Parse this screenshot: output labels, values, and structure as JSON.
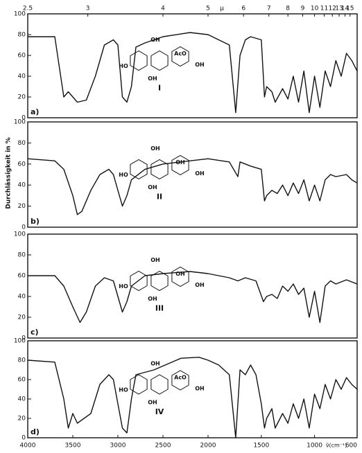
{
  "chart_data": [
    {
      "type": "line",
      "panel_label": "a)",
      "compound": "I",
      "x2label": "µ",
      "x2ticks": [
        2.5,
        3,
        4,
        5,
        6,
        7,
        8,
        9,
        10,
        11,
        12,
        13,
        14,
        15
      ],
      "structure_labels": [
        "HO",
        "OH",
        "AcO",
        "OH",
        "OH"
      ],
      "xlim": [
        4000,
        600
      ],
      "x_scale_change_at": 2000,
      "ylim": [
        0,
        100
      ],
      "yticks": [
        0,
        20,
        40,
        60,
        80,
        100
      ],
      "x": [
        4000,
        3700,
        3600,
        3550,
        3450,
        3350,
        3250,
        3150,
        3050,
        3000,
        2950,
        2900,
        2850,
        2800,
        2700,
        2500,
        2200,
        2000,
        1900,
        1800,
        1740,
        1700,
        1650,
        1600,
        1500,
        1470,
        1450,
        1400,
        1370,
        1300,
        1250,
        1200,
        1150,
        1100,
        1050,
        1000,
        950,
        900,
        850,
        800,
        750,
        700,
        650,
        600
      ],
      "series": [
        {
          "color": "#111111",
          "values": [
            78,
            78,
            20,
            25,
            15,
            17,
            40,
            70,
            75,
            70,
            20,
            15,
            30,
            68,
            72,
            78,
            82,
            80,
            75,
            70,
            5,
            60,
            75,
            78,
            75,
            20,
            30,
            25,
            15,
            28,
            18,
            40,
            15,
            45,
            5,
            40,
            10,
            45,
            30,
            55,
            40,
            62,
            55,
            45
          ]
        }
      ]
    },
    {
      "type": "line",
      "panel_label": "b)",
      "compound": "II",
      "ylabel": "Durchlässigkeit in %",
      "structure_labels": [
        "HO",
        "OH",
        "OH",
        "OH",
        "OH"
      ],
      "xlim": [
        4000,
        600
      ],
      "x_scale_change_at": 2000,
      "ylim": [
        0,
        100
      ],
      "yticks": [
        0,
        20,
        40,
        60,
        80,
        100
      ],
      "x": [
        4000,
        3700,
        3600,
        3500,
        3450,
        3400,
        3300,
        3200,
        3100,
        3050,
        2950,
        2900,
        2850,
        2700,
        2500,
        2200,
        2000,
        1800,
        1720,
        1700,
        1600,
        1500,
        1470,
        1450,
        1400,
        1350,
        1300,
        1250,
        1200,
        1150,
        1100,
        1050,
        1000,
        950,
        900,
        850,
        800,
        700,
        650,
        600
      ],
      "series": [
        {
          "color": "#111111",
          "values": [
            65,
            63,
            55,
            30,
            12,
            15,
            35,
            50,
            55,
            50,
            20,
            30,
            45,
            55,
            60,
            63,
            65,
            62,
            48,
            62,
            58,
            55,
            25,
            30,
            35,
            32,
            40,
            30,
            42,
            32,
            45,
            25,
            40,
            25,
            45,
            50,
            48,
            50,
            45,
            42
          ]
        }
      ]
    },
    {
      "type": "line",
      "panel_label": "c)",
      "compound": "III",
      "structure_labels": [
        "HO",
        "OH",
        "OH",
        "OH",
        "OH"
      ],
      "xlim": [
        4000,
        600
      ],
      "x_scale_change_at": 2000,
      "ylim": [
        0,
        100
      ],
      "yticks": [
        0,
        20,
        40,
        60,
        80,
        100
      ],
      "x": [
        4000,
        3700,
        3600,
        3500,
        3420,
        3350,
        3250,
        3150,
        3050,
        2950,
        2900,
        2850,
        2700,
        2500,
        2200,
        2000,
        1800,
        1720,
        1650,
        1550,
        1480,
        1450,
        1400,
        1350,
        1300,
        1250,
        1200,
        1150,
        1100,
        1050,
        1000,
        950,
        900,
        850,
        800,
        700,
        650,
        600
      ],
      "series": [
        {
          "color": "#111111",
          "values": [
            60,
            60,
            50,
            30,
            15,
            25,
            50,
            58,
            55,
            25,
            35,
            50,
            60,
            62,
            64,
            62,
            58,
            55,
            58,
            55,
            35,
            40,
            42,
            38,
            50,
            45,
            52,
            42,
            48,
            20,
            45,
            15,
            50,
            55,
            52,
            56,
            54,
            52
          ]
        }
      ]
    },
    {
      "type": "line",
      "panel_label": "d)",
      "compound": "IV",
      "xlabel": "ν̃(cm⁻¹)",
      "xticks": [
        4000,
        3500,
        3000,
        2500,
        2000,
        1500,
        1000,
        600
      ],
      "structure_labels": [
        "HO",
        "OH",
        "AcO",
        "OH",
        "OH"
      ],
      "xlim": [
        4000,
        600
      ],
      "x_scale_change_at": 2000,
      "ylim": [
        0,
        100
      ],
      "yticks": [
        0,
        20,
        40,
        60,
        80,
        100
      ],
      "x": [
        4000,
        3700,
        3600,
        3550,
        3500,
        3450,
        3300,
        3200,
        3100,
        3050,
        2950,
        2900,
        2850,
        2800,
        2600,
        2300,
        2100,
        2000,
        1900,
        1800,
        1740,
        1700,
        1650,
        1600,
        1550,
        1500,
        1470,
        1450,
        1400,
        1370,
        1300,
        1250,
        1200,
        1150,
        1100,
        1050,
        1000,
        950,
        900,
        850,
        800,
        750,
        700,
        650,
        600
      ],
      "series": [
        {
          "color": "#111111",
          "values": [
            80,
            78,
            40,
            10,
            25,
            15,
            25,
            55,
            65,
            60,
            10,
            5,
            40,
            65,
            70,
            82,
            83,
            80,
            75,
            65,
            0,
            70,
            65,
            75,
            65,
            35,
            10,
            20,
            30,
            10,
            25,
            15,
            35,
            20,
            40,
            10,
            45,
            30,
            55,
            40,
            60,
            50,
            62,
            55,
            50
          ]
        }
      ]
    }
  ]
}
